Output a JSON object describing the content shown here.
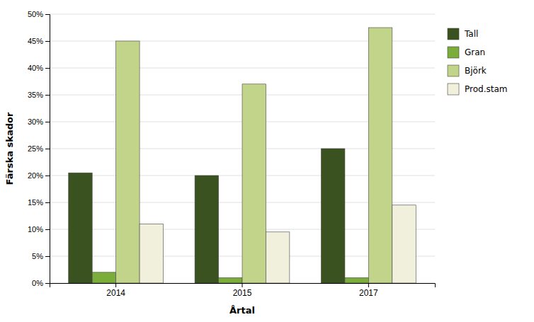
{
  "chart_data": {
    "type": "bar",
    "categories": [
      "2014",
      "2015",
      "2017"
    ],
    "series": [
      {
        "name": "Tall",
        "color": "#3a5220",
        "values": [
          0.205,
          0.2,
          0.25
        ]
      },
      {
        "name": "Gran",
        "color": "#7aad3a",
        "values": [
          0.02,
          0.01,
          0.01
        ]
      },
      {
        "name": "Björk",
        "color": "#c2d48a",
        "values": [
          0.45,
          0.37,
          0.475
        ]
      },
      {
        "name": "Prod.stam",
        "color": "#f0f0dc",
        "values": [
          0.11,
          0.095,
          0.145
        ]
      }
    ],
    "xlabel": "Årtal",
    "ylabel": "Färska skador",
    "ylim": [
      0,
      0.5
    ],
    "yticks": [
      {
        "value": 0.0,
        "label": "0%"
      },
      {
        "value": 0.05,
        "label": "5%"
      },
      {
        "value": 0.1,
        "label": "10%"
      },
      {
        "value": 0.15,
        "label": "15%"
      },
      {
        "value": 0.2,
        "label": "20%"
      },
      {
        "value": 0.25,
        "label": "25%"
      },
      {
        "value": 0.3,
        "label": "30%"
      },
      {
        "value": 0.35,
        "label": "35%"
      },
      {
        "value": 0.4,
        "label": "40%"
      },
      {
        "value": 0.45,
        "label": "45%"
      },
      {
        "value": 0.5,
        "label": "50%"
      }
    ],
    "grid": true,
    "legend": "right"
  }
}
